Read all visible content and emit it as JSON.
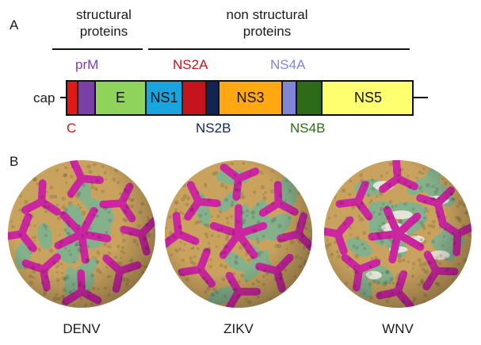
{
  "panel_a": {
    "letter": "A",
    "header_structural": "structural proteins",
    "header_nonstructural": "non structural proteins",
    "cap_label": "cap",
    "segments": [
      {
        "id": "C",
        "text": "",
        "color": "#e01818"
      },
      {
        "id": "prM",
        "text": "",
        "color": "#7b3fa8"
      },
      {
        "id": "E",
        "text": "E",
        "color": "#8fd35a"
      },
      {
        "id": "NS1",
        "text": "NS1",
        "color": "#18a4df"
      },
      {
        "id": "NS2A",
        "text": "",
        "color": "#c4141c"
      },
      {
        "id": "NS2B",
        "text": "",
        "color": "#10254f"
      },
      {
        "id": "NS3",
        "text": "NS3",
        "color": "#ffa812"
      },
      {
        "id": "NS4A",
        "text": "",
        "color": "#7f86d8"
      },
      {
        "id": "NS4B",
        "text": "",
        "color": "#2e6b16"
      },
      {
        "id": "NS5",
        "text": "NS5",
        "color": "#ffff70"
      }
    ],
    "labels": {
      "prM": {
        "text": "prM",
        "color": "#7b3fa8"
      },
      "NS2A": {
        "text": "NS2A",
        "color": "#c4141c"
      },
      "NS4A": {
        "text": "NS4A",
        "color": "#7f86d8"
      },
      "C": {
        "text": "C",
        "color": "#e01818"
      },
      "NS2B": {
        "text": "NS2B",
        "color": "#10254f"
      },
      "NS4B": {
        "text": "NS4B",
        "color": "#2e6b16"
      }
    }
  },
  "panel_b": {
    "letter": "B",
    "viruses": [
      {
        "name": "DENV"
      },
      {
        "name": "ZIKV"
      },
      {
        "name": "WNV"
      }
    ],
    "colors": {
      "magenta": "#c9269f",
      "green": "#84b08a",
      "tan": "#c9a35e",
      "white": "#f2efe8"
    }
  }
}
